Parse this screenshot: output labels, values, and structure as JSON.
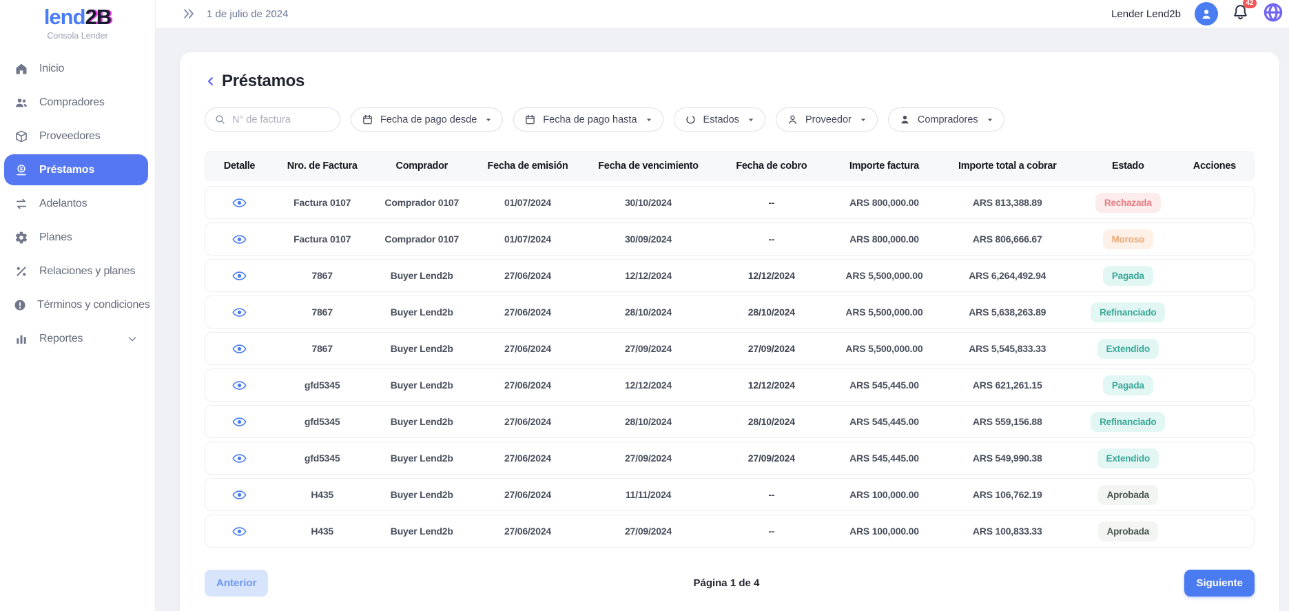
{
  "brand": {
    "logo_part1": "lend",
    "logo_part2": "2B",
    "subtitle": "Consola Lender"
  },
  "topbar": {
    "date": "1 de julio de 2024",
    "user_name": "Lender Lend2b",
    "notification_count": "42"
  },
  "sidebar": {
    "items": [
      {
        "id": "inicio",
        "label": "Inicio",
        "icon": "home-icon",
        "active": false
      },
      {
        "id": "compradores",
        "label": "Compradores",
        "icon": "users-icon",
        "active": false
      },
      {
        "id": "proveedores",
        "label": "Proveedores",
        "icon": "box-icon",
        "active": false
      },
      {
        "id": "prestamos",
        "label": "Préstamos",
        "icon": "loan-icon",
        "active": true
      },
      {
        "id": "adelantos",
        "label": "Adelantos",
        "icon": "transfer-icon",
        "active": false
      },
      {
        "id": "planes",
        "label": "Planes",
        "icon": "gear-icon",
        "active": false
      },
      {
        "id": "relaciones-y-planes",
        "label": "Relaciones y planes",
        "icon": "percent-icon",
        "active": false
      },
      {
        "id": "terminos-y-condiciones",
        "label": "Términos y condiciones",
        "icon": "alert-circle-icon",
        "active": false
      },
      {
        "id": "reportes",
        "label": "Reportes",
        "icon": "bar-chart-icon",
        "active": false,
        "expandable": true
      }
    ]
  },
  "main": {
    "title": "Préstamos",
    "search": {
      "placeholder": "N° de factura"
    },
    "filters": [
      {
        "id": "fecha-de-pago-desde",
        "label": "Fecha de pago desde",
        "icon": "calendar-icon"
      },
      {
        "id": "fecha-de-pago-hasta",
        "label": "Fecha de pago hasta",
        "icon": "calendar-icon"
      },
      {
        "id": "estados",
        "label": "Estados",
        "icon": "status-circle-icon"
      },
      {
        "id": "proveedor",
        "label": "Proveedor",
        "icon": "user-outline-icon"
      },
      {
        "id": "compradores",
        "label": "Compradores",
        "icon": "user-filled-icon"
      }
    ],
    "table": {
      "columns": [
        "Detalle",
        "Nro. de Factura",
        "Comprador",
        "Fecha de emisión",
        "Fecha de vencimiento",
        "Fecha de cobro",
        "Importe factura",
        "Importe total a cobrar",
        "Estado",
        "Acciones"
      ],
      "rows": [
        {
          "invoice": "Factura 0107",
          "buyer": "Comprador 0107",
          "issue_date": "01/07/2024",
          "due_date": "30/10/2024",
          "collection_date": "--",
          "invoice_amount": "ARS 800,000.00",
          "total_amount": "ARS 813,388.89",
          "status": "Rechazada",
          "status_variant": "red"
        },
        {
          "invoice": "Factura 0107",
          "buyer": "Comprador 0107",
          "issue_date": "01/07/2024",
          "due_date": "30/09/2024",
          "collection_date": "--",
          "invoice_amount": "ARS 800,000.00",
          "total_amount": "ARS 806,666.67",
          "status": "Moroso",
          "status_variant": "orange"
        },
        {
          "invoice": "7867",
          "buyer": "Buyer Lend2b",
          "issue_date": "27/06/2024",
          "due_date": "12/12/2024",
          "collection_date": "12/12/2024",
          "invoice_amount": "ARS 5,500,000.00",
          "total_amount": "ARS 6,264,492.94",
          "status": "Pagada",
          "status_variant": "teal"
        },
        {
          "invoice": "7867",
          "buyer": "Buyer Lend2b",
          "issue_date": "27/06/2024",
          "due_date": "28/10/2024",
          "collection_date": "28/10/2024",
          "invoice_amount": "ARS 5,500,000.00",
          "total_amount": "ARS 5,638,263.89",
          "status": "Refinanciado",
          "status_variant": "teal"
        },
        {
          "invoice": "7867",
          "buyer": "Buyer Lend2b",
          "issue_date": "27/06/2024",
          "due_date": "27/09/2024",
          "collection_date": "27/09/2024",
          "invoice_amount": "ARS 5,500,000.00",
          "total_amount": "ARS 5,545,833.33",
          "status": "Extendido",
          "status_variant": "teal"
        },
        {
          "invoice": "gfd5345",
          "buyer": "Buyer Lend2b",
          "issue_date": "27/06/2024",
          "due_date": "12/12/2024",
          "collection_date": "12/12/2024",
          "invoice_amount": "ARS 545,445.00",
          "total_amount": "ARS 621,261.15",
          "status": "Pagada",
          "status_variant": "teal"
        },
        {
          "invoice": "gfd5345",
          "buyer": "Buyer Lend2b",
          "issue_date": "27/06/2024",
          "due_date": "28/10/2024",
          "collection_date": "28/10/2024",
          "invoice_amount": "ARS 545,445.00",
          "total_amount": "ARS 559,156.88",
          "status": "Refinanciado",
          "status_variant": "teal"
        },
        {
          "invoice": "gfd5345",
          "buyer": "Buyer Lend2b",
          "issue_date": "27/06/2024",
          "due_date": "27/09/2024",
          "collection_date": "27/09/2024",
          "invoice_amount": "ARS 545,445.00",
          "total_amount": "ARS 549,990.38",
          "status": "Extendido",
          "status_variant": "teal"
        },
        {
          "invoice": "H435",
          "buyer": "Buyer Lend2b",
          "issue_date": "27/06/2024",
          "due_date": "11/11/2024",
          "collection_date": "--",
          "invoice_amount": "ARS 100,000.00",
          "total_amount": "ARS 106,762.19",
          "status": "Aprobada",
          "status_variant": "neutral"
        },
        {
          "invoice": "H435",
          "buyer": "Buyer Lend2b",
          "issue_date": "27/06/2024",
          "due_date": "27/09/2024",
          "collection_date": "--",
          "invoice_amount": "ARS 100,000.00",
          "total_amount": "ARS 100,833.33",
          "status": "Aprobada",
          "status_variant": "neutral"
        }
      ]
    },
    "pagination": {
      "prev_label": "Anterior",
      "page_label": "Página 1 de 4",
      "next_label": "Siguiente"
    }
  },
  "colors": {
    "accent_blue": "#5577f2",
    "logo_blue": "#4a7cf5",
    "logo_magenta": "#e23ce0",
    "badge_red_bg": "#fdecec",
    "badge_red_text": "#e87a80",
    "badge_orange_bg": "#fdf0e6",
    "badge_orange_text": "#e9a876",
    "badge_teal_bg": "#e2f7f4",
    "badge_teal_text": "#3ba796",
    "badge_neutral_bg": "#f2f5f1",
    "badge_neutral_text": "#49544d",
    "notification_red": "#f25555",
    "globe_purple": "#7165f2"
  }
}
